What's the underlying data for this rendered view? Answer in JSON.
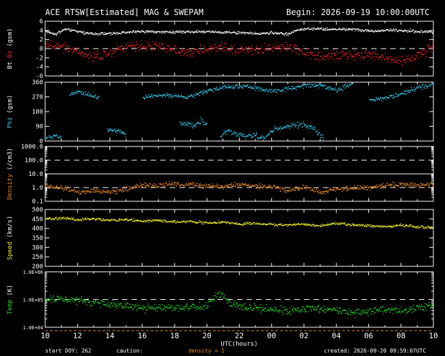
{
  "header": {
    "title": "ACE RTSW[Estimated] MAG & SWEPAM",
    "begin": "Begin: 2026-09-19 10:00:00UTC"
  },
  "footer": {
    "start": "start DOY: 262",
    "caution": "caution:",
    "caution_note": "density < 1",
    "created": "created: 2026-09-20 09:59:07UTC"
  },
  "colors": {
    "bt": "#ffffff",
    "bz": "#ff2020",
    "phi": "#33ccee",
    "density": "#ee8a20",
    "speed": "#eeee20",
    "temp": "#22dd22",
    "caution_bar": "#ee8a20"
  },
  "chart_data": {
    "type": "scatter",
    "x_axis": {
      "label": "UTC(hours)",
      "range_hours": [
        0,
        24
      ],
      "tick_labels": [
        "10",
        "12",
        "14",
        "16",
        "18",
        "20",
        "22",
        "00",
        "02",
        "04",
        "06",
        "08",
        "10"
      ]
    },
    "panels": [
      {
        "id": "mag",
        "ylabel_parts": [
          {
            "text": "Bt",
            "color": "#ffffff"
          },
          {
            "text": " Bz",
            "color": "#ff2020"
          },
          {
            "text": " (gsm)",
            "color": "#ffffff"
          }
        ],
        "scale": "linear",
        "ylim": [
          -6,
          6
        ],
        "ticks": [
          -6,
          -4,
          -2,
          0,
          2,
          4,
          6
        ],
        "tick_labels": [
          "-6",
          "-4",
          "-2",
          "0",
          "2",
          "4",
          "6"
        ],
        "dashed": [
          0
        ],
        "series": [
          {
            "key": "bt",
            "color": "#ffffff",
            "spread": 0.25,
            "points": [
              [
                0,
                3.8
              ],
              [
                0.6,
                3.2
              ],
              [
                1.2,
                4.4
              ],
              [
                2,
                3.8
              ],
              [
                3,
                3.3
              ],
              [
                4,
                3.4
              ],
              [
                5,
                3.7
              ],
              [
                6,
                3.9
              ],
              [
                7,
                3.8
              ],
              [
                8,
                3.7
              ],
              [
                9,
                3.8
              ],
              [
                10,
                3.8
              ],
              [
                11,
                3.7
              ],
              [
                12,
                3.6
              ],
              [
                13,
                3.4
              ],
              [
                14,
                3.5
              ],
              [
                15,
                3.3
              ],
              [
                15.6,
                4.2
              ],
              [
                16,
                4.4
              ],
              [
                17,
                4.4
              ],
              [
                18,
                4.3
              ],
              [
                19,
                4.3
              ],
              [
                20,
                4.0
              ],
              [
                21,
                4.1
              ],
              [
                22,
                4.1
              ],
              [
                23,
                3.9
              ],
              [
                24,
                3.7
              ]
            ]
          },
          {
            "key": "bz",
            "color": "#ff2020",
            "spread": 0.9,
            "points": [
              [
                0,
                1.0
              ],
              [
                1,
                0.4
              ],
              [
                2,
                -0.5
              ],
              [
                3,
                -1.8
              ],
              [
                4,
                -0.8
              ],
              [
                5,
                0.6
              ],
              [
                6,
                0.4
              ],
              [
                7,
                0.8
              ],
              [
                8,
                0.0
              ],
              [
                9,
                -0.8
              ],
              [
                10,
                0.2
              ],
              [
                11,
                0.5
              ],
              [
                12,
                -0.2
              ],
              [
                13,
                -0.4
              ],
              [
                14,
                0.3
              ],
              [
                15,
                0.4
              ],
              [
                16,
                -0.8
              ],
              [
                17,
                -1.8
              ],
              [
                18,
                -1.2
              ],
              [
                19,
                -1.6
              ],
              [
                20,
                -1.0
              ],
              [
                21,
                -2.2
              ],
              [
                22,
                -2.8
              ],
              [
                23,
                -1.5
              ],
              [
                24,
                0.6
              ]
            ]
          }
        ]
      },
      {
        "id": "phi",
        "ylabel_parts": [
          {
            "text": "Phi",
            "color": "#33ccee"
          },
          {
            "text": " (gsm)",
            "color": "#ffffff"
          }
        ],
        "scale": "linear",
        "ylim": [
          0,
          360
        ],
        "ticks": [
          0,
          90,
          180,
          270,
          360
        ],
        "tick_labels": [
          "0",
          "90",
          "180",
          "270",
          "360"
        ],
        "dashed": [],
        "series": [
          {
            "key": "phi",
            "color": "#33ccee",
            "spread": 12,
            "gap": 60,
            "points": [
              [
                0,
                15
              ],
              [
                0.6,
                35
              ],
              [
                1.0,
                20
              ],
              [
                1.5,
                285
              ],
              [
                2,
                300
              ],
              [
                3,
                275
              ],
              [
                3.3,
                270
              ],
              [
                3.8,
                75
              ],
              [
                4.5,
                65
              ],
              [
                5,
                40
              ],
              [
                6,
                270
              ],
              [
                7,
                285
              ],
              [
                8,
                280
              ],
              [
                9,
                275
              ],
              [
                10,
                310
              ],
              [
                11,
                330
              ],
              [
                12,
                340
              ],
              [
                13,
                325
              ],
              [
                14,
                305
              ],
              [
                15,
                320
              ],
              [
                16,
                345
              ],
              [
                17,
                340
              ],
              [
                18,
                310
              ],
              [
                19,
                360
              ],
              [
                20,
                250
              ],
              [
                21,
                265
              ],
              [
                22,
                290
              ],
              [
                23,
                330
              ],
              [
                24,
                350
              ]
            ]
          },
          {
            "key": "phi_low",
            "color": "#33ccee",
            "spread": 14,
            "gap": 60,
            "points": [
              [
                8.3,
                110
              ],
              [
                8.8,
                105
              ],
              [
                9.2,
                95
              ],
              [
                9.6,
                130
              ],
              [
                10,
                95
              ],
              [
                10.8,
                20
              ],
              [
                11.2,
                70
              ],
              [
                11.8,
                45
              ],
              [
                12.4,
                30
              ],
              [
                12.9,
                40
              ],
              [
                13.5,
                20
              ],
              [
                14.2,
                80
              ],
              [
                14.8,
                90
              ],
              [
                15.5,
                105
              ],
              [
                16,
                100
              ],
              [
                16.6,
                85
              ],
              [
                17,
                40
              ],
              [
                17.2,
                20
              ]
            ]
          }
        ]
      },
      {
        "id": "density",
        "ylabel_parts": [
          {
            "text": "Density",
            "color": "#ee8a20"
          },
          {
            "text": " (/cm3)",
            "color": "#ffffff"
          }
        ],
        "scale": "log",
        "ylim": [
          0.1,
          1000
        ],
        "ticks": [
          0.1,
          1,
          10,
          100,
          1000
        ],
        "tick_labels": [
          "0.1",
          "1.0",
          "10.0",
          "100.0",
          "1000.0"
        ],
        "dashed": [
          1,
          100
        ],
        "series": [
          {
            "key": "density",
            "color": "#ee8a20",
            "spread": 0.15,
            "points": [
              [
                0,
                1.4
              ],
              [
                1,
                1.0
              ],
              [
                2,
                0.5
              ],
              [
                3,
                0.6
              ],
              [
                4,
                0.5
              ],
              [
                5,
                0.8
              ],
              [
                6,
                1.7
              ],
              [
                7,
                1.5
              ],
              [
                8,
                2.0
              ],
              [
                9,
                1.8
              ],
              [
                10,
                1.5
              ],
              [
                11,
                1.3
              ],
              [
                12,
                1.8
              ],
              [
                13,
                1.5
              ],
              [
                14,
                1.2
              ],
              [
                15,
                0.6
              ],
              [
                16,
                1.2
              ],
              [
                17,
                0.4
              ],
              [
                18,
                0.8
              ],
              [
                19,
                1.0
              ],
              [
                20,
                1.1
              ],
              [
                21,
                1.5
              ],
              [
                22,
                1.8
              ],
              [
                23,
                1.6
              ],
              [
                24,
                1.8
              ]
            ]
          }
        ]
      },
      {
        "id": "speed",
        "ylabel_parts": [
          {
            "text": "Speed",
            "color": "#eeee20"
          },
          {
            "text": " (km/s)",
            "color": "#ffffff"
          }
        ],
        "scale": "linear",
        "ylim": [
          200,
          500
        ],
        "ticks": [
          200,
          250,
          300,
          350,
          400,
          450,
          500
        ],
        "tick_labels": [
          "200",
          "250",
          "300",
          "350",
          "400",
          "450",
          "500"
        ],
        "dashed": [],
        "series": [
          {
            "key": "speed",
            "color": "#eeee20",
            "spread": 6,
            "points": [
              [
                0,
                453
              ],
              [
                1,
                458
              ],
              [
                2,
                448
              ],
              [
                3,
                455
              ],
              [
                4,
                445
              ],
              [
                5,
                450
              ],
              [
                6,
                440
              ],
              [
                7,
                445
              ],
              [
                8,
                435
              ],
              [
                9,
                440
              ],
              [
                10,
                430
              ],
              [
                11,
                437
              ],
              [
                12,
                425
              ],
              [
                13,
                430
              ],
              [
                14,
                423
              ],
              [
                15,
                420
              ],
              [
                16,
                425
              ],
              [
                17,
                415
              ],
              [
                18,
                430
              ],
              [
                19,
                420
              ],
              [
                20,
                418
              ],
              [
                21,
                412
              ],
              [
                22,
                420
              ],
              [
                23,
                410
              ],
              [
                24,
                408
              ]
            ]
          }
        ]
      },
      {
        "id": "temp",
        "ylabel_parts": [
          {
            "text": "Temp",
            "color": "#22dd22"
          },
          {
            "text": " (K)",
            "color": "#ffffff"
          }
        ],
        "scale": "log",
        "ylim": [
          10000,
          1000000
        ],
        "ticks": [
          10000,
          100000,
          1000000
        ],
        "tick_labels": [
          "1.0E+04",
          "1.0E+05",
          "1.0E+06"
        ],
        "dashed": [
          100000
        ],
        "series": [
          {
            "key": "temp",
            "color": "#22dd22",
            "spread": 0.12,
            "points": [
              [
                0,
                100000
              ],
              [
                1,
                105000
              ],
              [
                2,
                95000
              ],
              [
                3,
                80000
              ],
              [
                4,
                70000
              ],
              [
                5,
                60000
              ],
              [
                6,
                50000
              ],
              [
                7,
                55000
              ],
              [
                8,
                52000
              ],
              [
                9,
                58000
              ],
              [
                10,
                60000
              ],
              [
                10.8,
                180000
              ],
              [
                11.3,
                80000
              ],
              [
                12,
                55000
              ],
              [
                13,
                50000
              ],
              [
                14,
                45000
              ],
              [
                15,
                40000
              ],
              [
                16,
                45000
              ],
              [
                17,
                50000
              ],
              [
                18,
                42000
              ],
              [
                19,
                35000
              ],
              [
                20,
                40000
              ],
              [
                21,
                45000
              ],
              [
                22,
                40000
              ],
              [
                23,
                50000
              ],
              [
                24,
                60000
              ]
            ]
          }
        ]
      }
    ]
  }
}
